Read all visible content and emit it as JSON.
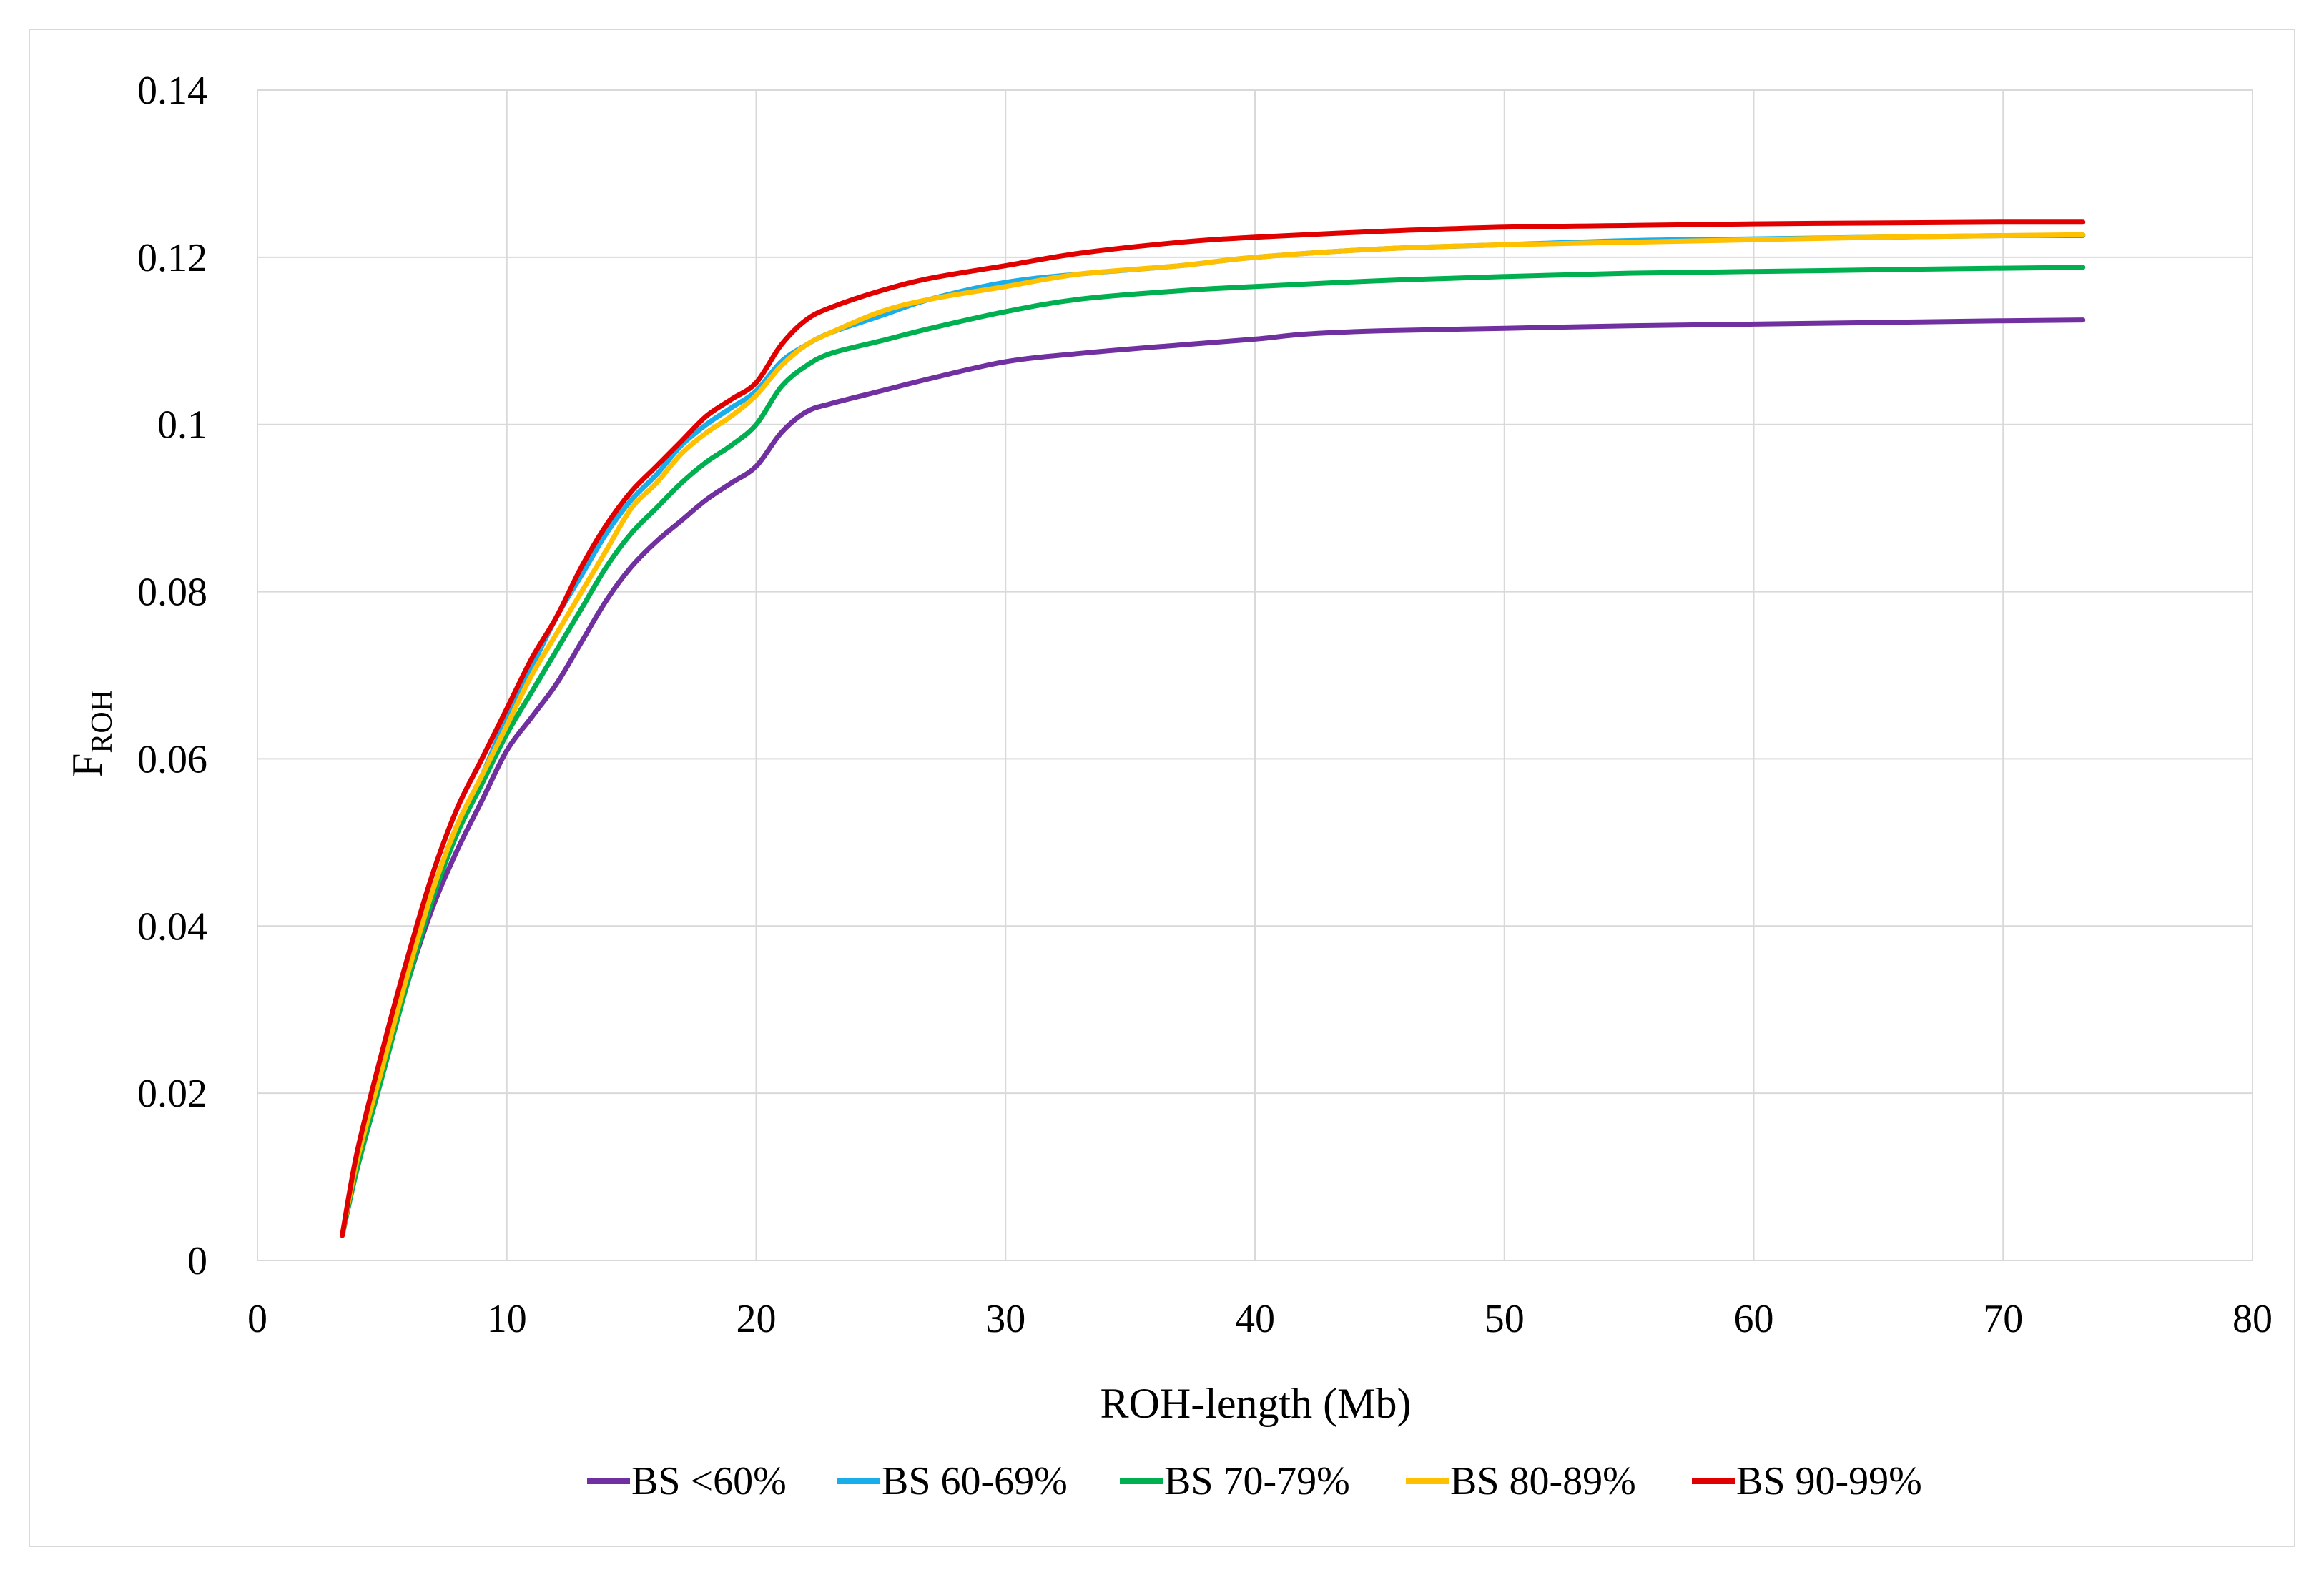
{
  "chart_data": {
    "type": "line",
    "title": "",
    "xlabel": "ROH-length (Mb)",
    "ylabel_main": "F",
    "ylabel_sub": "ROH",
    "xlim": [
      0,
      80
    ],
    "ylim": [
      0,
      0.14
    ],
    "x_ticks": [
      "0",
      "10",
      "20",
      "30",
      "40",
      "50",
      "60",
      "70",
      "80"
    ],
    "y_ticks": [
      "0",
      "0.02",
      "0.04",
      "0.06",
      "0.08",
      "0.1",
      "0.12",
      "0.14"
    ],
    "grid": true,
    "legend_position": "bottom",
    "series": [
      {
        "name": "BS <60%",
        "color": "#7030A0",
        "x": [
          3.4,
          4,
          5,
          6,
          7,
          8,
          9,
          10,
          11,
          12,
          13,
          14,
          15,
          16,
          17,
          18,
          19,
          20,
          21,
          22,
          23,
          25,
          27,
          30,
          33,
          37,
          40,
          42,
          45,
          50,
          55,
          60,
          65,
          70,
          73.2
        ],
        "y": [
          0.003,
          0.011,
          0.022,
          0.033,
          0.042,
          0.049,
          0.055,
          0.061,
          0.065,
          0.069,
          0.074,
          0.079,
          0.083,
          0.086,
          0.0885,
          0.091,
          0.093,
          0.095,
          0.099,
          0.1015,
          0.1025,
          0.104,
          0.1055,
          0.1075,
          0.1085,
          0.1095,
          0.1102,
          0.1108,
          0.1112,
          0.1115,
          0.1118,
          0.112,
          0.1122,
          0.1124,
          0.1125
        ]
      },
      {
        "name": "BS 60-69%",
        "color": "#1AADEB",
        "x": [
          3.4,
          4,
          5,
          6,
          7,
          8,
          9,
          10,
          11,
          12,
          13,
          14,
          15,
          16,
          17,
          18,
          19,
          20,
          21,
          22,
          23,
          25,
          27,
          30,
          33,
          37,
          40,
          45,
          50,
          55,
          60,
          65,
          70,
          73.2
        ],
        "y": [
          0.003,
          0.012,
          0.023,
          0.034,
          0.044,
          0.052,
          0.058,
          0.065,
          0.071,
          0.077,
          0.082,
          0.087,
          0.091,
          0.094,
          0.0975,
          0.1,
          0.102,
          0.104,
          0.1075,
          0.1095,
          0.111,
          0.113,
          0.115,
          0.117,
          0.118,
          0.119,
          0.12,
          0.121,
          0.1215,
          0.122,
          0.1222,
          0.1224,
          0.1226,
          0.1226
        ]
      },
      {
        "name": "BS 70-79%",
        "color": "#00B050",
        "x": [
          3.4,
          4,
          5,
          6,
          7,
          8,
          9,
          10,
          11,
          12,
          13,
          14,
          15,
          16,
          17,
          18,
          19,
          20,
          21,
          22,
          23,
          25,
          27,
          30,
          33,
          37,
          40,
          45,
          50,
          55,
          60,
          65,
          70,
          73.2
        ],
        "y": [
          0.003,
          0.011,
          0.022,
          0.033,
          0.043,
          0.051,
          0.057,
          0.063,
          0.068,
          0.073,
          0.078,
          0.083,
          0.087,
          0.09,
          0.093,
          0.0955,
          0.0975,
          0.1,
          0.1045,
          0.107,
          0.1085,
          0.11,
          0.1115,
          0.1135,
          0.115,
          0.116,
          0.1165,
          0.1172,
          0.1177,
          0.1181,
          0.1183,
          0.1185,
          0.1187,
          0.1188
        ]
      },
      {
        "name": "BS 80-89%",
        "color": "#FFC000",
        "x": [
          3.4,
          4,
          5,
          6,
          7,
          8,
          9,
          10,
          11,
          12,
          13,
          14,
          15,
          16,
          17,
          18,
          19,
          20,
          21,
          22,
          23,
          25,
          27,
          30,
          33,
          37,
          40,
          45,
          50,
          55,
          60,
          65,
          70,
          73.2
        ],
        "y": [
          0.003,
          0.012,
          0.023,
          0.034,
          0.044,
          0.052,
          0.058,
          0.064,
          0.07,
          0.075,
          0.08,
          0.085,
          0.09,
          0.093,
          0.0965,
          0.099,
          0.101,
          0.1035,
          0.107,
          0.1095,
          0.111,
          0.1135,
          0.115,
          0.1165,
          0.118,
          0.119,
          0.12,
          0.121,
          0.1215,
          0.1218,
          0.1221,
          0.1224,
          0.1226,
          0.1227
        ]
      },
      {
        "name": "BS 90-99%",
        "color": "#E00000",
        "x": [
          3.4,
          4,
          5,
          6,
          7,
          8,
          9,
          10,
          11,
          12,
          13,
          14,
          15,
          16,
          17,
          18,
          19,
          20,
          21,
          22,
          23,
          25,
          27,
          30,
          33,
          37,
          40,
          45,
          50,
          55,
          60,
          65,
          70,
          73.2
        ],
        "y": [
          0.003,
          0.013,
          0.025,
          0.036,
          0.046,
          0.054,
          0.06,
          0.066,
          0.072,
          0.077,
          0.083,
          0.088,
          0.092,
          0.095,
          0.098,
          0.101,
          0.103,
          0.105,
          0.1095,
          0.1125,
          0.114,
          0.116,
          0.1175,
          0.119,
          0.1205,
          0.1218,
          0.1224,
          0.1231,
          0.1236,
          0.1238,
          0.124,
          0.1241,
          0.1242,
          0.1242
        ]
      }
    ]
  }
}
